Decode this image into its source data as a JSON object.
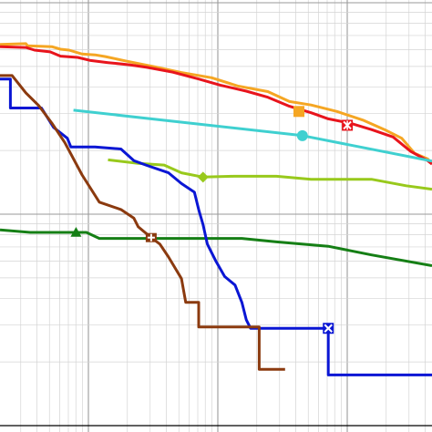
{
  "chart_data": {
    "type": "line",
    "title": "",
    "xlabel": "",
    "ylabel": "",
    "x_scale": "log",
    "y_scale": "log",
    "grid": true,
    "series": [
      {
        "color": "#f5a623",
        "marker": "square",
        "points": [
          [
            0.0,
            0.103
          ],
          [
            0.3,
            0.101
          ],
          [
            0.32,
            0.106
          ],
          [
            0.6,
            0.108
          ],
          [
            0.7,
            0.114
          ],
          [
            0.8,
            0.116
          ],
          [
            0.95,
            0.125
          ],
          [
            1.1,
            0.127
          ],
          [
            1.22,
            0.131
          ],
          [
            1.45,
            0.141
          ],
          [
            1.8,
            0.155
          ],
          [
            2.1,
            0.168
          ],
          [
            2.45,
            0.18
          ],
          [
            2.75,
            0.199
          ],
          [
            3.1,
            0.212
          ],
          [
            3.35,
            0.235
          ],
          [
            3.6,
            0.243
          ],
          [
            3.9,
            0.258
          ],
          [
            4.2,
            0.278
          ],
          [
            4.45,
            0.3
          ],
          [
            4.65,
            0.32
          ],
          [
            4.8,
            0.355
          ],
          [
            4.95,
            0.368
          ],
          [
            5.0,
            0.378
          ]
        ],
        "marker_points": [
          [
            3.46,
            0.258
          ]
        ]
      },
      {
        "color": "#e8141c",
        "marker": "asterisk",
        "points": [
          [
            0.0,
            0.108
          ],
          [
            0.3,
            0.11
          ],
          [
            0.4,
            0.116
          ],
          [
            0.58,
            0.12
          ],
          [
            0.7,
            0.13
          ],
          [
            0.9,
            0.133
          ],
          [
            1.05,
            0.14
          ],
          [
            1.25,
            0.145
          ],
          [
            1.5,
            0.15
          ],
          [
            1.7,
            0.156
          ],
          [
            2.0,
            0.167
          ],
          [
            2.3,
            0.183
          ],
          [
            2.55,
            0.197
          ],
          [
            2.85,
            0.211
          ],
          [
            3.1,
            0.225
          ],
          [
            3.35,
            0.246
          ],
          [
            3.6,
            0.261
          ],
          [
            3.8,
            0.275
          ],
          [
            4.05,
            0.285
          ],
          [
            4.3,
            0.3
          ],
          [
            4.55,
            0.317
          ],
          [
            4.75,
            0.35
          ],
          [
            4.95,
            0.372
          ],
          [
            5.0,
            0.38
          ]
        ],
        "marker_points": [
          [
            4.02,
            0.29
          ]
        ]
      },
      {
        "color": "#3fd0d0",
        "marker": "circle",
        "points": [
          [
            0.85,
            0.255
          ],
          [
            3.5,
            0.314
          ],
          [
            5.0,
            0.373
          ]
        ],
        "marker_points": [
          [
            3.5,
            0.314
          ]
        ]
      },
      {
        "color": "#98c91c",
        "marker": "diamond",
        "points": [
          [
            1.25,
            0.37
          ],
          [
            1.6,
            0.378
          ],
          [
            1.9,
            0.382
          ],
          [
            2.1,
            0.4
          ],
          [
            2.35,
            0.41
          ],
          [
            2.7,
            0.408
          ],
          [
            3.2,
            0.408
          ],
          [
            3.6,
            0.415
          ],
          [
            4.3,
            0.415
          ],
          [
            4.7,
            0.43
          ],
          [
            5.0,
            0.438
          ]
        ],
        "marker_points": [
          [
            2.35,
            0.41
          ]
        ]
      },
      {
        "color": "#157f15",
        "marker": "triangle",
        "points": [
          [
            0.0,
            0.532
          ],
          [
            0.35,
            0.538
          ],
          [
            0.7,
            0.538
          ],
          [
            1.0,
            0.538
          ],
          [
            1.15,
            0.552
          ],
          [
            1.5,
            0.552
          ],
          [
            2.5,
            0.552
          ],
          [
            2.8,
            0.552
          ],
          [
            3.2,
            0.56
          ],
          [
            3.8,
            0.57
          ],
          [
            4.3,
            0.59
          ],
          [
            5.0,
            0.615
          ]
        ],
        "marker_points": [
          [
            0.88,
            0.538
          ]
        ]
      },
      {
        "color": "#0a16d4",
        "marker": "x",
        "points": [
          [
            0.0,
            0.183
          ],
          [
            0.12,
            0.183
          ],
          [
            0.12,
            0.25
          ],
          [
            0.48,
            0.25
          ],
          [
            0.62,
            0.295
          ],
          [
            0.78,
            0.32
          ],
          [
            0.82,
            0.34
          ],
          [
            1.1,
            0.34
          ],
          [
            1.4,
            0.345
          ],
          [
            1.55,
            0.372
          ],
          [
            1.7,
            0.383
          ],
          [
            1.95,
            0.4
          ],
          [
            2.1,
            0.425
          ],
          [
            2.25,
            0.445
          ],
          [
            2.3,
            0.485
          ],
          [
            2.35,
            0.52
          ],
          [
            2.4,
            0.565
          ],
          [
            2.5,
            0.605
          ],
          [
            2.6,
            0.64
          ],
          [
            2.72,
            0.66
          ],
          [
            2.8,
            0.7
          ],
          [
            2.85,
            0.74
          ],
          [
            2.9,
            0.76
          ],
          [
            3.8,
            0.76
          ],
          [
            3.8,
            0.868
          ],
          [
            5.0,
            0.868
          ]
        ],
        "marker_points": [
          [
            3.8,
            0.76
          ]
        ]
      },
      {
        "color": "#8b3a0f",
        "marker": "plus",
        "points": [
          [
            0.0,
            0.175
          ],
          [
            0.14,
            0.175
          ],
          [
            0.3,
            0.215
          ],
          [
            0.45,
            0.245
          ],
          [
            0.6,
            0.285
          ],
          [
            0.75,
            0.33
          ],
          [
            0.95,
            0.405
          ],
          [
            1.15,
            0.468
          ],
          [
            1.4,
            0.485
          ],
          [
            1.55,
            0.505
          ],
          [
            1.6,
            0.525
          ],
          [
            1.75,
            0.55
          ],
          [
            1.85,
            0.565
          ],
          [
            1.95,
            0.595
          ],
          [
            2.1,
            0.645
          ],
          [
            2.15,
            0.7
          ],
          [
            2.3,
            0.7
          ],
          [
            2.3,
            0.757
          ],
          [
            3.0,
            0.757
          ],
          [
            3.0,
            0.855
          ],
          [
            3.3,
            0.855
          ]
        ],
        "marker_points": [
          [
            1.75,
            0.55
          ]
        ]
      }
    ]
  }
}
